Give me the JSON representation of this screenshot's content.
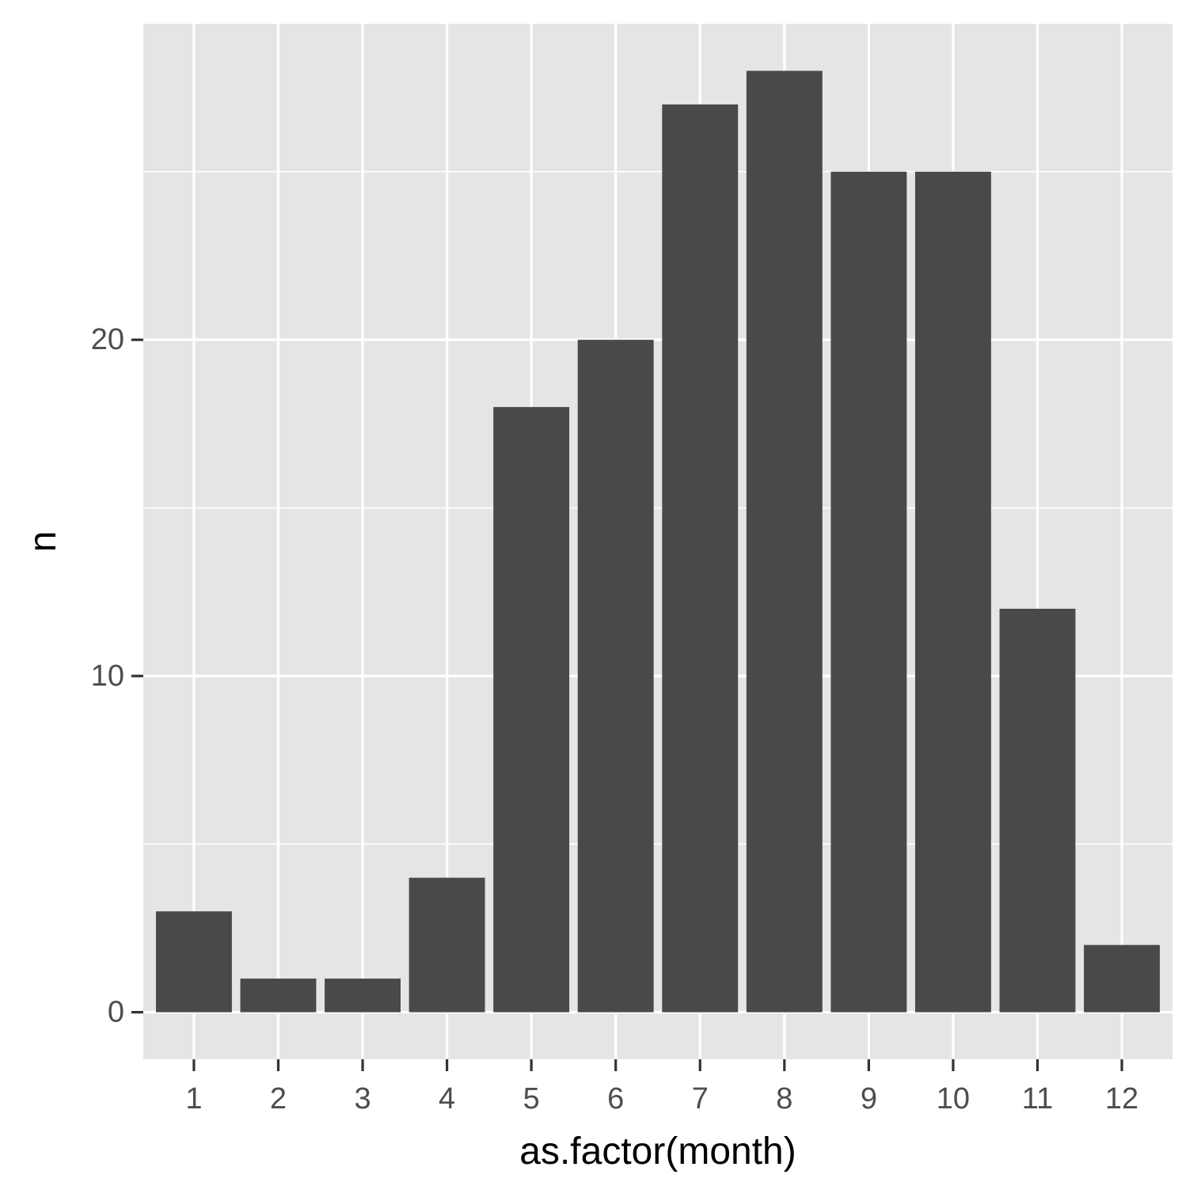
{
  "chart_data": {
    "type": "bar",
    "title": "",
    "xlabel": "as.factor(month)",
    "ylabel": "n",
    "categories": [
      "1",
      "2",
      "3",
      "4",
      "5",
      "6",
      "7",
      "8",
      "9",
      "10",
      "11",
      "12"
    ],
    "values": [
      3,
      1,
      1,
      4,
      18,
      20,
      27,
      28,
      25,
      25,
      12,
      2
    ],
    "ylim": [
      -1.4,
      29.4
    ],
    "y_ticks": [
      0,
      10,
      20
    ],
    "y_minor_ticks": [
      5,
      15,
      25
    ],
    "grid": true,
    "legend": "none",
    "colors": {
      "bar": "#494949",
      "panel": "#e5e5e5",
      "grid": "#ffffff",
      "tick_text": "#4d4d4d",
      "axis_title": "#000000",
      "tick_mark": "#333333"
    }
  }
}
